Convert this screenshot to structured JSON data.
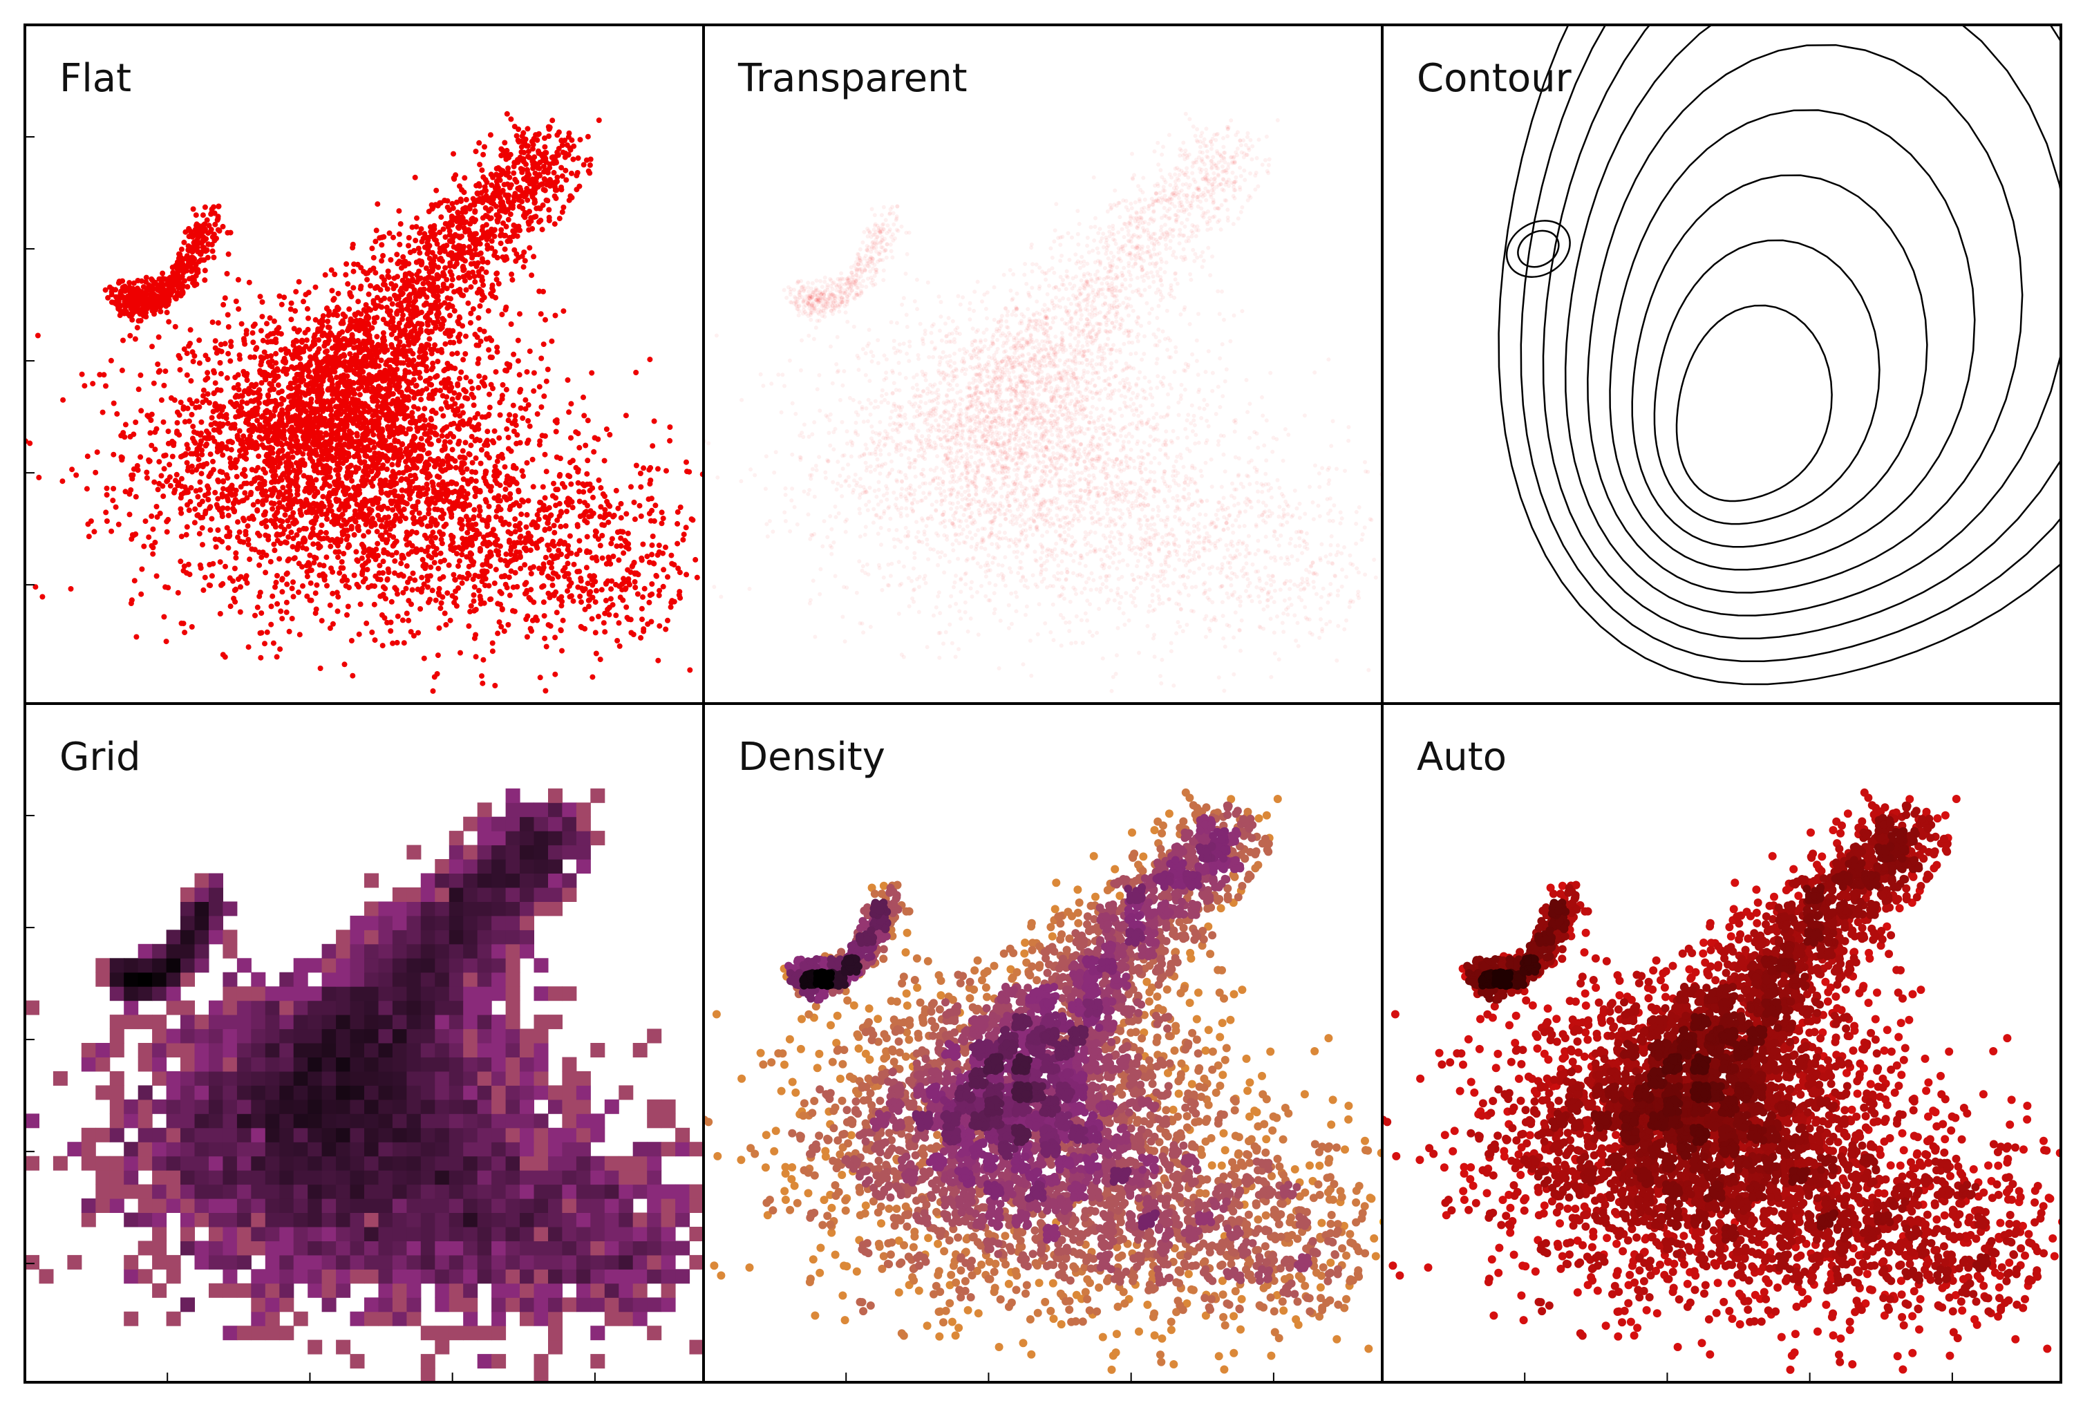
{
  "figure": {
    "panels": [
      {
        "id": "flat",
        "title": "Flat",
        "mode": "flat",
        "color": "#ee0000"
      },
      {
        "id": "transparent",
        "title": "Transparent",
        "mode": "transparent",
        "color": "#ee0000"
      },
      {
        "id": "contour",
        "title": "Contour",
        "mode": "contour",
        "color": "#000000"
      },
      {
        "id": "grid",
        "title": "Grid",
        "mode": "grid",
        "colormap": "inferno-reversed"
      },
      {
        "id": "density",
        "title": "Density",
        "mode": "density",
        "colormap": "inferno-reversed"
      },
      {
        "id": "auto",
        "title": "Auto",
        "mode": "auto",
        "colormap": "red-to-black"
      }
    ]
  },
  "chart_data": {
    "type": "scatter",
    "layout": "2x3 small multiples, shared axes",
    "grid": false,
    "tick_labels": "none",
    "xlim": [
      0,
      1
    ],
    "ylim": [
      0,
      1
    ],
    "colors": {
      "flat": "#ee0000",
      "contour": "#000000",
      "colormap_light": "#f5a623",
      "colormap_mid": "#8a2a7a",
      "colormap_dark": "#000000",
      "auto_light": "#ee1111",
      "auto_dark": "#200000"
    },
    "structure": [
      {
        "component": "main-cloud",
        "x_center": 0.47,
        "y_center": 0.36,
        "x_spread": 0.15,
        "y_spread": 0.11,
        "weight": 0.5
      },
      {
        "component": "diagonal-branch",
        "x_start": 0.4,
        "y_start": 0.4,
        "x_end": 0.78,
        "y_end": 0.83,
        "weight": 0.3
      },
      {
        "component": "left-arc",
        "x_start": 0.14,
        "y_start": 0.6,
        "x_end": 0.28,
        "y_end": 0.72,
        "weight": 0.08
      },
      {
        "component": "right-tail",
        "x_center": 0.78,
        "y_center": 0.22,
        "x_spread": 0.12,
        "y_spread": 0.07,
        "weight": 0.12
      }
    ]
  }
}
